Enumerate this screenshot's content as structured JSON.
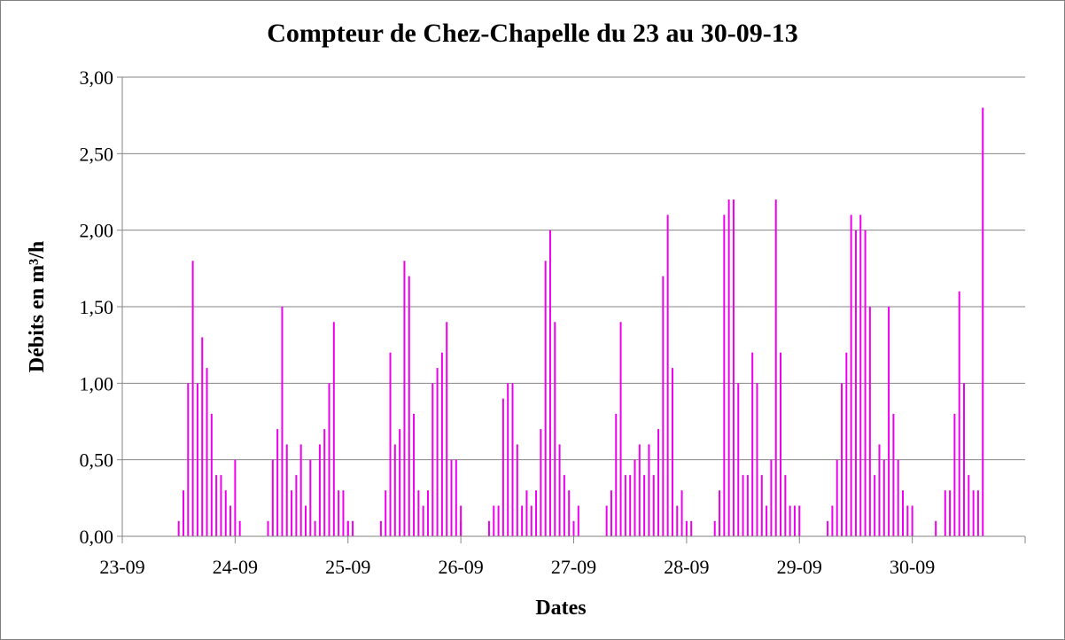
{
  "chart_data": {
    "type": "bar",
    "title": "Compteur de Chez-Chapelle du 23 au 30-09-13",
    "xlabel": "Dates",
    "ylabel": "Débits en m³/h",
    "x_unit": "date (day-month)",
    "xlim": [
      "23-09 00:00",
      "31-09 00:00"
    ],
    "ylim": [
      0,
      3
    ],
    "y_ticks": [
      "0,00",
      "0,50",
      "1,00",
      "1,50",
      "2,00",
      "2,50",
      "3,00"
    ],
    "x_ticks": [
      "23-09",
      "24-09",
      "25-09",
      "26-09",
      "27-09",
      "28-09",
      "29-09",
      "30-09"
    ],
    "grid": {
      "horizontal": true,
      "vertical": false
    },
    "series": [
      {
        "color": "#ee00ee",
        "days": [
          {
            "date": "23-09",
            "hours": [
              12,
              13,
              14,
              15,
              16,
              17,
              18,
              19,
              20,
              21,
              22,
              23,
              24
            ],
            "values": [
              0.1,
              0.3,
              1.0,
              1.8,
              1.0,
              1.3,
              1.1,
              0.8,
              0.4,
              0.4,
              0.3,
              0.2,
              0.5
            ]
          },
          {
            "date": "24-09",
            "hours": [
              1,
              7,
              8,
              9,
              10,
              11,
              12,
              13,
              14,
              15,
              16,
              17,
              18,
              19,
              20,
              21,
              22,
              23,
              24
            ],
            "values": [
              0.1,
              0.1,
              0.5,
              0.7,
              1.5,
              0.6,
              0.3,
              0.4,
              0.6,
              0.2,
              0.5,
              0.1,
              0.6,
              0.7,
              1.0,
              1.4,
              0.3,
              0.3,
              0.1
            ]
          },
          {
            "date": "25-09",
            "hours": [
              0,
              1,
              7,
              8,
              9,
              10,
              11,
              12,
              13,
              14,
              15,
              16,
              17,
              18,
              19,
              20,
              21,
              22,
              23,
              24
            ],
            "values": [
              0.1,
              0.1,
              0.1,
              0.3,
              1.2,
              0.6,
              0.7,
              1.8,
              1.7,
              0.8,
              0.3,
              0.2,
              0.3,
              1.0,
              1.1,
              1.2,
              1.4,
              0.5,
              0.5,
              0.2
            ]
          },
          {
            "date": "26-09",
            "hours": [
              0,
              6,
              7,
              8,
              9,
              10,
              11,
              12,
              13,
              14,
              15,
              16,
              17,
              18,
              19,
              20,
              21,
              22,
              23
            ],
            "values": [
              0.1,
              0.1,
              0.2,
              0.2,
              0.9,
              1.0,
              1.0,
              0.6,
              0.2,
              0.3,
              0.2,
              0.3,
              0.7,
              1.8,
              2.0,
              1.4,
              0.6,
              0.4,
              0.3
            ]
          },
          {
            "date": "27-09",
            "hours": [
              0,
              1,
              7,
              8,
              9,
              10,
              11,
              12,
              13,
              14,
              15,
              16,
              17,
              18,
              19,
              20,
              21,
              22,
              23
            ],
            "values": [
              0.1,
              0.2,
              0.2,
              0.3,
              0.8,
              1.4,
              0.4,
              0.4,
              0.5,
              0.6,
              0.4,
              0.6,
              0.4,
              0.7,
              1.7,
              2.1,
              1.1,
              0.2,
              0.3
            ]
          },
          {
            "date": "28-09",
            "hours": [
              0,
              1,
              6,
              7,
              8,
              9,
              10,
              11,
              12,
              13,
              14,
              15,
              16,
              17,
              18,
              19,
              20,
              21,
              22,
              23
            ],
            "values": [
              0.1,
              0.1,
              0.1,
              0.3,
              2.1,
              2.2,
              2.2,
              1.0,
              0.4,
              0.4,
              1.2,
              1.0,
              0.4,
              0.2,
              0.5,
              2.2,
              1.2,
              0.4,
              0.2,
              0.2
            ]
          },
          {
            "date": "29-09",
            "hours": [
              0,
              6,
              7,
              8,
              9,
              10,
              11,
              12,
              13,
              14,
              15,
              16,
              17,
              18,
              19,
              20,
              21,
              22,
              23
            ],
            "values": [
              0.2,
              0.1,
              0.2,
              0.5,
              1.0,
              1.2,
              2.1,
              2.0,
              2.1,
              2.0,
              1.5,
              0.4,
              0.6,
              0.5,
              1.5,
              0.8,
              0.5,
              0.3,
              0.2
            ]
          },
          {
            "date": "30-09",
            "hours": [
              0,
              5,
              7,
              8,
              9,
              10,
              11,
              12,
              13,
              14,
              15
            ],
            "values": [
              0.2,
              0.1,
              0.3,
              0.3,
              0.8,
              1.6,
              1.0,
              0.4,
              0.3,
              0.3,
              2.8
            ]
          }
        ]
      }
    ]
  }
}
